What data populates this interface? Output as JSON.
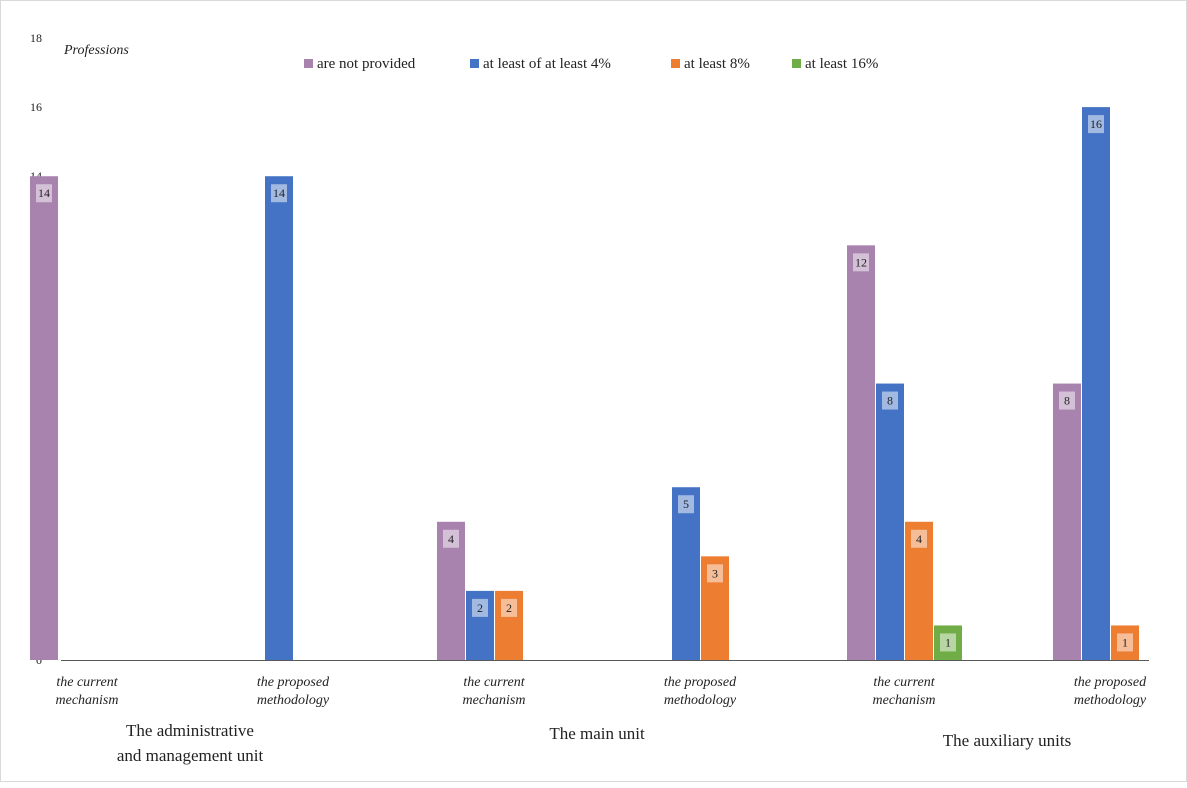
{
  "chart_data": {
    "type": "bar",
    "ylabel": "Professions",
    "ylim": [
      0,
      18
    ],
    "yticks": [
      0,
      2,
      4,
      6,
      8,
      10,
      12,
      14,
      16,
      18
    ],
    "grid": false,
    "legend_position": "top",
    "series": [
      {
        "name": "are not provided",
        "color": "#a883ae"
      },
      {
        "name": "at least of at least 4%",
        "color": "#4472c4"
      },
      {
        "name": "at least 8%",
        "color": "#ed7d31"
      },
      {
        "name": "at least 16%",
        "color": "#70ad47"
      }
    ],
    "groups": [
      {
        "label_lines": [
          "The administrative",
          "and management unit"
        ],
        "subgroups": [
          {
            "label_lines": [
              "the current",
              "mechanism"
            ],
            "values": [
              14,
              null,
              null,
              null
            ]
          },
          {
            "label_lines": [
              "the proposed",
              "methodology"
            ],
            "values": [
              null,
              14,
              null,
              null
            ]
          }
        ]
      },
      {
        "label_lines": [
          "The main unit"
        ],
        "subgroups": [
          {
            "label_lines": [
              "the current",
              "mechanism"
            ],
            "values": [
              4,
              2,
              2,
              null
            ]
          },
          {
            "label_lines": [
              "the proposed",
              "methodology"
            ],
            "values": [
              null,
              5,
              3,
              null
            ]
          }
        ]
      },
      {
        "label_lines": [
          "The auxiliary  units"
        ],
        "subgroups": [
          {
            "label_lines": [
              "the current",
              "mechanism"
            ],
            "values": [
              12,
              8,
              4,
              1
            ]
          },
          {
            "label_lines": [
              "the proposed",
              "methodology"
            ],
            "values": [
              8,
              16,
              1,
              null
            ]
          }
        ]
      }
    ]
  }
}
